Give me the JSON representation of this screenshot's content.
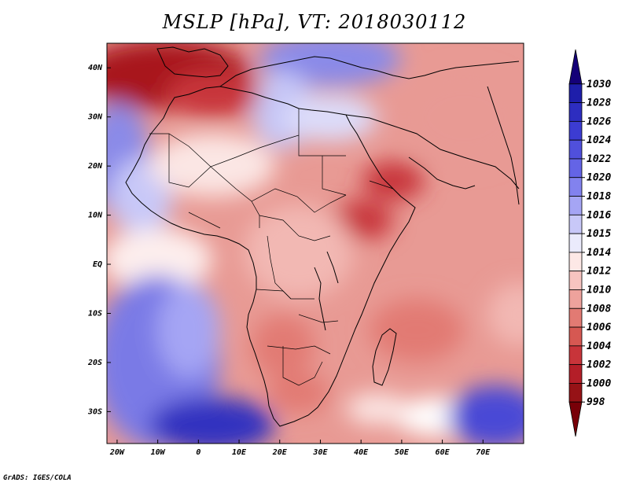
{
  "title": "MSLP [hPa], VT: 2018030112",
  "credit": "GrADS: IGES/COLA",
  "axes": {
    "lat_labels": [
      "40N",
      "30N",
      "20N",
      "10N",
      "EQ",
      "10S",
      "20S",
      "30S"
    ],
    "lon_labels": [
      "20W",
      "10W",
      "0",
      "10E",
      "20E",
      "30E",
      "40E",
      "50E",
      "60E",
      "70E"
    ],
    "lat_values": [
      40,
      30,
      20,
      10,
      0,
      -10,
      -20,
      -30
    ],
    "lon_values": [
      -20,
      -10,
      0,
      10,
      20,
      30,
      40,
      50,
      60,
      70
    ],
    "lat_range": [
      -36.5,
      45
    ],
    "lon_range": [
      -22.5,
      80
    ]
  },
  "colorbar": {
    "levels": [
      "1030",
      "1028",
      "1026",
      "1024",
      "1022",
      "1020",
      "1018",
      "1016",
      "1015",
      "1014",
      "1012",
      "1010",
      "1008",
      "1006",
      "1004",
      "1002",
      "1000",
      "998"
    ],
    "colors": [
      "#140078",
      "#1e1eaa",
      "#2d2dc0",
      "#3c3cd2",
      "#5050dc",
      "#6464e6",
      "#8282ee",
      "#a5a5f4",
      "#c8c8f8",
      "#ebebfc",
      "#fde8e6",
      "#f7c4c0",
      "#eea29c",
      "#e27a73",
      "#d65852",
      "#c8343a",
      "#b41e28",
      "#961216",
      "#780008"
    ]
  }
}
